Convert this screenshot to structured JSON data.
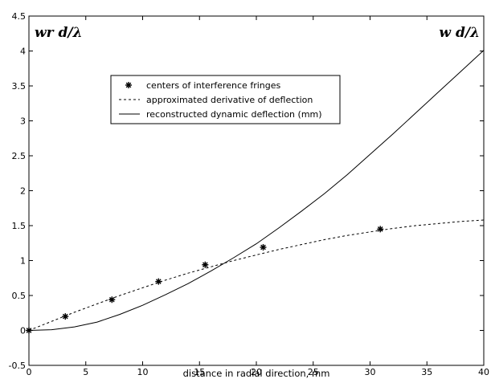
{
  "chart_data": {
    "type": "line",
    "title": "",
    "xlabel": "distance in radial direction, mm",
    "ylabel": "",
    "xlim": [
      0,
      40
    ],
    "ylim": [
      -0.5,
      4.5
    ],
    "x_ticks": [
      0,
      5,
      10,
      15,
      20,
      25,
      30,
      35,
      40
    ],
    "y_ticks": [
      -0.5,
      0,
      0.5,
      1,
      1.5,
      2,
      2.5,
      3,
      3.5,
      4,
      4.5
    ],
    "x_tick_labels": [
      "0",
      "5",
      "10",
      "15",
      "20",
      "25",
      "30",
      "35",
      "40"
    ],
    "y_tick_labels": [
      "-0.5",
      "0",
      "0.5",
      "1",
      "1.5",
      "2",
      "2.5",
      "3",
      "3.5",
      "4",
      "4.5"
    ],
    "grid": false,
    "legend_position": "top-center",
    "left_axis_label": "wr d/λ",
    "right_axis_label": "w d/λ",
    "series": [
      {
        "name": "centers of interference fringes",
        "style": "markers",
        "marker": "*",
        "x": [
          0,
          3.2,
          7.3,
          11.4,
          15.5,
          20.6,
          30.9
        ],
        "y": [
          0,
          0.2,
          0.44,
          0.7,
          0.94,
          1.19,
          1.45
        ]
      },
      {
        "name": "approximated derivative of deflection",
        "style": "dashed",
        "x": [
          0,
          2,
          4,
          6,
          8,
          10,
          12,
          14,
          16,
          18,
          20,
          22,
          24,
          26,
          28,
          30,
          32,
          34,
          36,
          38,
          40
        ],
        "y": [
          0,
          0.13,
          0.26,
          0.38,
          0.5,
          0.61,
          0.72,
          0.82,
          0.91,
          1.0,
          1.08,
          1.16,
          1.23,
          1.3,
          1.36,
          1.41,
          1.46,
          1.5,
          1.53,
          1.56,
          1.58
        ]
      },
      {
        "name": "reconstructed dynamic deflection (mm)",
        "style": "solid",
        "x": [
          0,
          2,
          4,
          6,
          8,
          10,
          12,
          14,
          16,
          18,
          20,
          22,
          24,
          26,
          28,
          30,
          32,
          34,
          36,
          38,
          40
        ],
        "y": [
          0,
          0.01,
          0.05,
          0.12,
          0.23,
          0.36,
          0.51,
          0.67,
          0.85,
          1.04,
          1.24,
          1.47,
          1.71,
          1.96,
          2.23,
          2.52,
          2.81,
          3.11,
          3.41,
          3.71,
          4.01
        ]
      }
    ]
  }
}
